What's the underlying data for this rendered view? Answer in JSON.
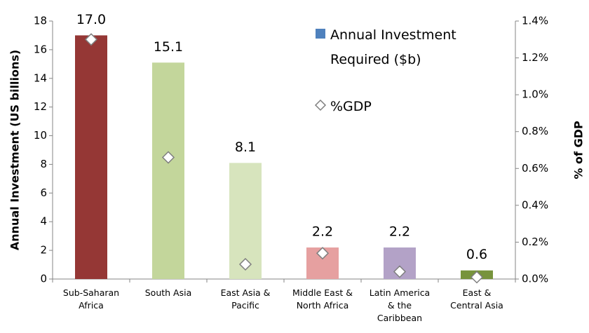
{
  "chart_data": {
    "type": "bar",
    "categories": [
      "Sub-Saharan Africa",
      "South Asia",
      "East Asia & Pacific",
      "Middle East & North Africa",
      "Latin America & the Caribbean",
      "East & Central Asia"
    ],
    "series": [
      {
        "name": "Annual Investment Required ($b)",
        "type": "bar",
        "color": "#4f81bd",
        "colors": [
          "#953735",
          "#c3d69b",
          "#d7e4bd",
          "#e6a0a0",
          "#b3a2c7",
          "#77933c"
        ],
        "values": [
          17.0,
          15.1,
          8.1,
          2.2,
          2.2,
          0.6
        ],
        "value_labels": [
          "17.0",
          "15.1",
          "8.1",
          "2.2",
          "2.2",
          "0.6"
        ]
      },
      {
        "name": "%GDP",
        "type": "scatter",
        "axis": "y2",
        "color": "#ffffff",
        "values": [
          1.3,
          0.66,
          0.08,
          0.14,
          0.04,
          0.01
        ]
      }
    ],
    "y_label": "Annual Investment (US billions)",
    "y2_label": "% of GDP",
    "ylim": [
      0,
      18
    ],
    "yticks": [
      0,
      2,
      4,
      6,
      8,
      10,
      12,
      14,
      16,
      18
    ],
    "y2lim": [
      0,
      1.4
    ],
    "y2ticks": [
      {
        "value": 0,
        "label": "0.0%"
      },
      {
        "value": 0.2,
        "label": "0.2%"
      },
      {
        "value": 0.4,
        "label": "0.4%"
      },
      {
        "value": 0.6,
        "label": "0.6%"
      },
      {
        "value": 0.8,
        "label": "0.8%"
      },
      {
        "value": 1.0,
        "label": "1.0%"
      },
      {
        "value": 1.2,
        "label": "1.2%"
      },
      {
        "value": 1.4,
        "label": "1.4%"
      }
    ],
    "grid": false
  }
}
